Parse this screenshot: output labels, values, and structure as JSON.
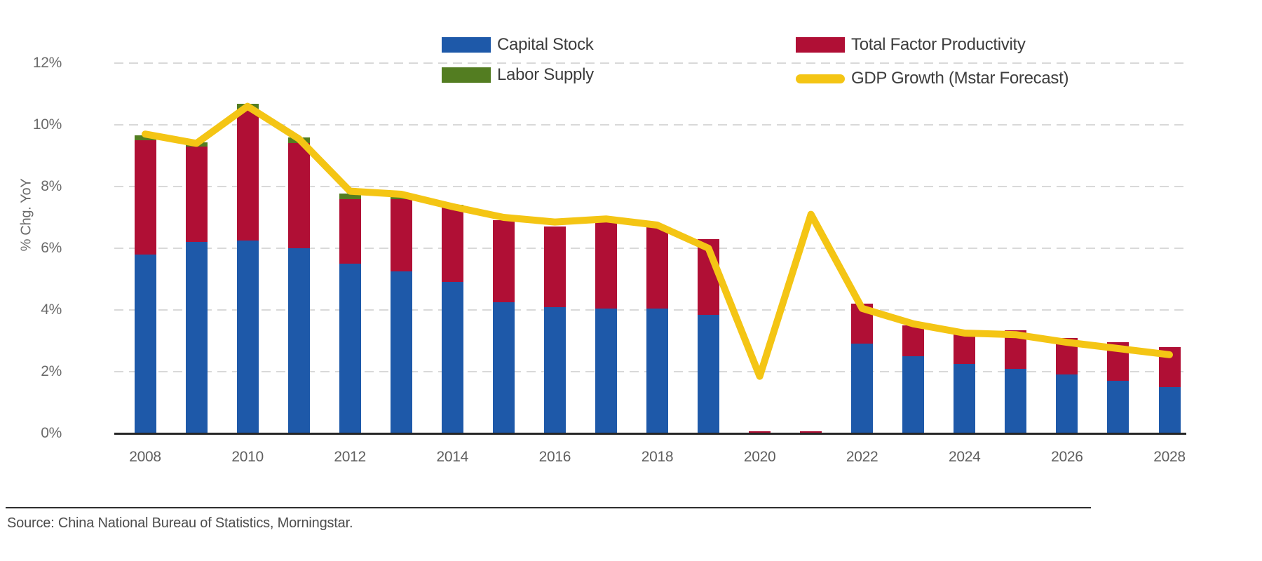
{
  "legend": {
    "items": [
      {
        "label": "Capital Stock",
        "color": "#1e59a9",
        "type": "box"
      },
      {
        "label": "Labor Supply",
        "color": "#537d21",
        "type": "box"
      },
      {
        "label": "Total Factor Productivity",
        "color": "#b00f35",
        "type": "box"
      },
      {
        "label": "GDP Growth (Mstar Forecast)",
        "color": "#f4c514",
        "type": "line"
      }
    ]
  },
  "y_axis": {
    "title": "% Chg. YoY"
  },
  "footer": {
    "source": "Source: China National Bureau of Statistics, Morningstar."
  },
  "chart_data": {
    "type": "bar",
    "subtype": "stacked-bars-with-line-overlay",
    "categories": [
      2008,
      2009,
      2010,
      2011,
      2012,
      2013,
      2014,
      2015,
      2016,
      2017,
      2018,
      2019,
      2020,
      2021,
      2022,
      2023,
      2024,
      2025,
      2026,
      2027,
      2028
    ],
    "series": [
      {
        "name": "Capital Stock",
        "color": "#1e59a9",
        "values": [
          5.8,
          6.2,
          6.25,
          6.0,
          5.5,
          5.25,
          4.9,
          4.25,
          4.1,
          4.05,
          4.05,
          3.85,
          0.03,
          0.03,
          2.9,
          2.5,
          2.25,
          2.1,
          1.9,
          1.7,
          1.5
        ]
      },
      {
        "name": "Total Factor Productivity",
        "color": "#b00f35",
        "values": [
          3.7,
          3.1,
          4.25,
          3.4,
          2.1,
          2.35,
          2.45,
          2.65,
          2.6,
          2.85,
          2.65,
          2.45,
          0.03,
          0.03,
          1.3,
          1.0,
          1.0,
          1.25,
          1.2,
          1.25,
          1.3
        ]
      },
      {
        "name": "Labor Supply",
        "color": "#537d21",
        "values": [
          0.16,
          0.13,
          0.18,
          0.18,
          0.17,
          0.1,
          0.05,
          0,
          0,
          0,
          0,
          0,
          0,
          0,
          0,
          0,
          0,
          0,
          0,
          0,
          0
        ]
      }
    ],
    "line_series": {
      "name": "GDP Growth (Mstar Forecast)",
      "color": "#f4c514",
      "values": [
        9.7,
        9.4,
        10.6,
        9.55,
        7.85,
        7.75,
        7.35,
        7.0,
        6.85,
        6.95,
        6.75,
        6.0,
        1.85,
        7.1,
        4.05,
        3.55,
        3.25,
        3.2,
        2.95,
        2.75,
        2.55
      ]
    },
    "title": "",
    "xlabel": "",
    "ylabel": "% Chg. YoY",
    "ylim": [
      0,
      12.5
    ],
    "yticks": [
      0,
      2,
      4,
      6,
      8,
      10,
      12
    ],
    "ytick_labels": [
      "0%",
      "2%",
      "4%",
      "6%",
      "8%",
      "10%",
      "12%"
    ],
    "xticks": [
      2008,
      2010,
      2012,
      2014,
      2016,
      2018,
      2020,
      2022,
      2024,
      2026,
      2028
    ],
    "grid": true,
    "gridline_style": "dashed",
    "legend_position": "top"
  }
}
